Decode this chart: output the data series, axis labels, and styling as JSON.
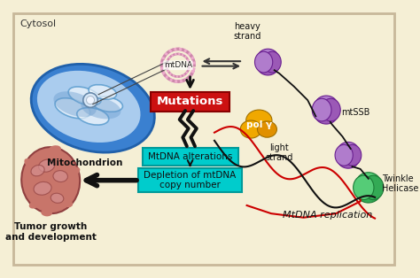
{
  "bg_color": "#f5efd5",
  "border_color": "#c8b89a",
  "labels": {
    "cytosol": "Cytosol",
    "mitochondrion": "Mitochondrion",
    "mtdna": "mtDNA",
    "mutations": "Mutations",
    "mtdna_alterations": "MtDNA alterations",
    "depletion": "Depletion of mtDNA\ncopy number",
    "tumor": "Tumor growth\nand development",
    "heavy_strand": "heavy\nstrand",
    "light_strand": "light\nstrand",
    "mtssb": "mtSSB",
    "poly": "pol γ",
    "twinkle": "Twinkle\nHelicase",
    "mtdna_replication": "MtDNA replication"
  },
  "colors": {
    "mutations_box": "#cc1111",
    "mutations_text": "#ffffff",
    "alterations_box": "#00cccc",
    "depletion_box": "#00cccc",
    "purple_light": "#b07ccc",
    "purple_mid": "#9b59b6",
    "purple_dark": "#7d3c98",
    "orange_light": "#f0a800",
    "orange_dark": "#d08000",
    "green_light": "#44cc66",
    "green_dark": "#228844",
    "strand_black": "#111111",
    "strand_red": "#cc0000",
    "mito_outer": "#4488dd",
    "mito_mid": "#7ab0ee",
    "mito_light": "#c8dff8",
    "mito_white": "#e8f4ff",
    "tumor_base": "#c8756a",
    "tumor_dark": "#a05050",
    "tumor_spot": "#d49090"
  }
}
